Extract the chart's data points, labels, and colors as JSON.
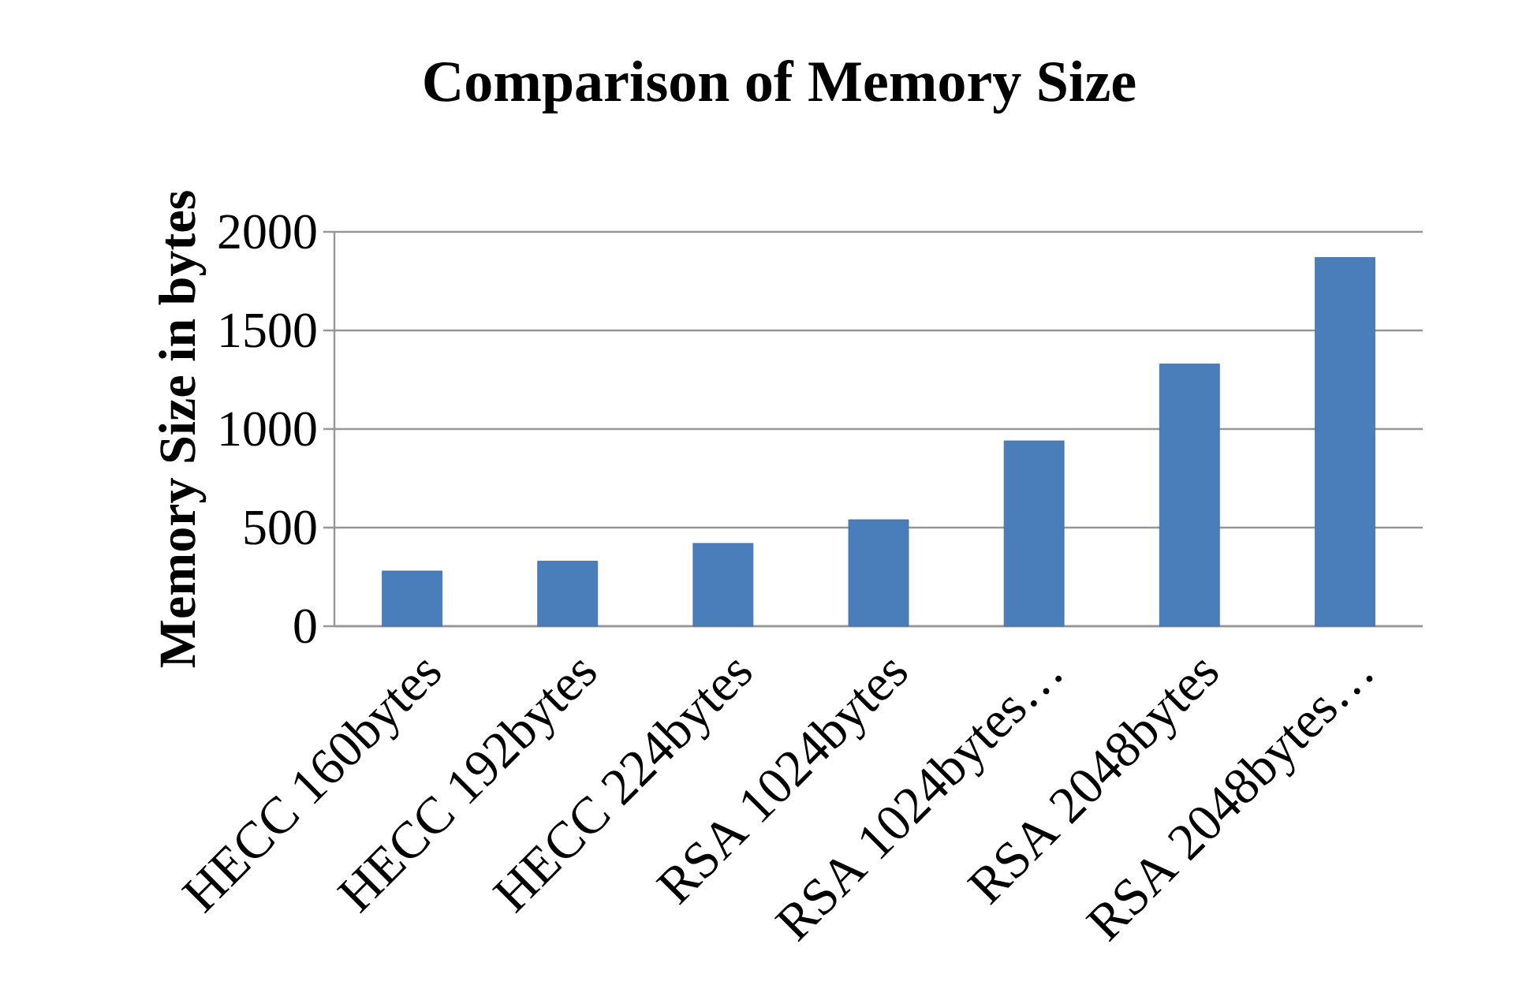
{
  "chart_data": {
    "type": "bar",
    "title": "Comparison of Memory Size",
    "ylabel": "Memory Size in bytes",
    "categories": [
      "HECC 160bytes",
      "HECC 192bytes",
      "HECC 224bytes",
      "RSA 1024bytes",
      "RSA 1024bytes…",
      "RSA 2048bytes",
      "RSA 2048bytes…"
    ],
    "values": [
      280,
      330,
      420,
      540,
      940,
      1330,
      1870
    ],
    "color": "#4a7ebb",
    "ylim": [
      0,
      2000
    ],
    "yticks": [
      0,
      500,
      1000,
      1500,
      2000
    ],
    "grid": "y"
  }
}
